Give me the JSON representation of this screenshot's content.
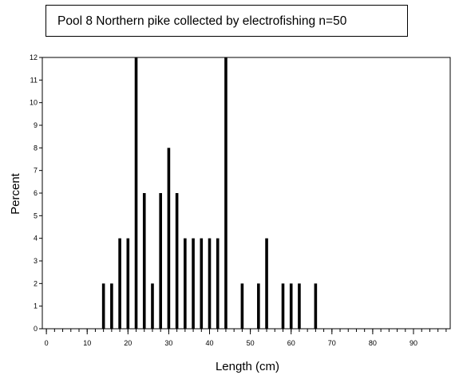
{
  "title": "Pool 8 Northern pike collected by electrofishing n=50",
  "chart_data": {
    "type": "bar",
    "xlabel": "Length (cm)",
    "ylabel": "Percent",
    "xlim": [
      -1,
      99
    ],
    "ylim": [
      0,
      12
    ],
    "x_ticks": [
      0,
      10,
      20,
      30,
      40,
      50,
      60,
      70,
      80,
      90
    ],
    "y_ticks": [
      0,
      1,
      2,
      3,
      4,
      5,
      6,
      7,
      8,
      9,
      10,
      11,
      12
    ],
    "x_minor_step": 2,
    "grid": false,
    "legend": "none",
    "bar_color": "#000000",
    "x": [
      14,
      16,
      18,
      20,
      22,
      24,
      26,
      28,
      30,
      32,
      34,
      36,
      38,
      40,
      42,
      44,
      48,
      52,
      54,
      58,
      60,
      62,
      66
    ],
    "values": [
      2,
      2,
      4,
      4,
      12,
      6,
      2,
      6,
      8,
      6,
      4,
      4,
      4,
      4,
      4,
      12,
      2,
      2,
      4,
      2,
      2,
      2,
      2
    ]
  }
}
